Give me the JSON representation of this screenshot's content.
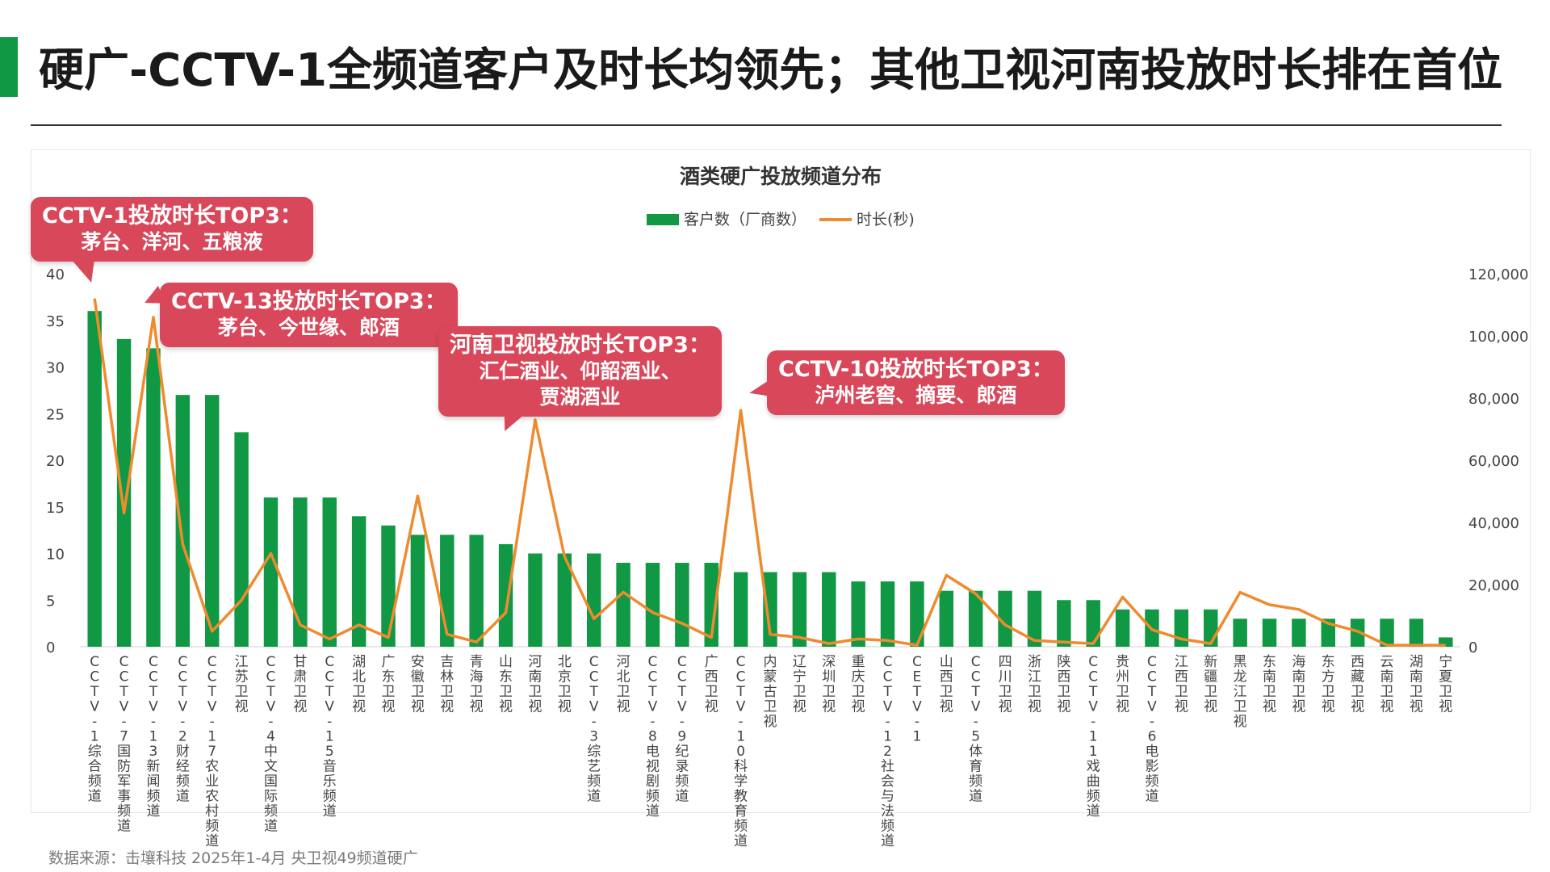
{
  "page": {
    "title": "硬广-CCTV-1全频道客户及时长均领先；其他卫视河南投放时长排在首位",
    "footnote": "数据来源：击壤科技 2025年1-4月 央卫视49频道硬广"
  },
  "colors": {
    "accent": "#119844",
    "bar": "#119844",
    "line": "#ee8b2f",
    "callout": "#d9475a"
  },
  "callouts": [
    {
      "title": "CCTV-1投放时长TOP3：",
      "body": [
        "茅台、洋河、五粮液"
      ]
    },
    {
      "title": "CCTV-13投放时长TOP3：",
      "body": [
        "茅台、今世缘、郎酒"
      ]
    },
    {
      "title": "河南卫视投放时长TOP3：",
      "body": [
        "汇仁酒业、仰韶酒业、",
        "贾湖酒业"
      ]
    },
    {
      "title": "CCTV-10投放时长TOP3：",
      "body": [
        "泸州老窖、摘要、郎酒"
      ]
    }
  ],
  "chart_data": {
    "type": "bar",
    "title": "酒类硬广投放频道分布",
    "legend_position": "top-center",
    "grid": false,
    "categories": [
      "CCTV-1综合频道",
      "CCTV-7国防军事频道",
      "CCTV-13新闻频道",
      "CCTV-2财经频道",
      "CCTV-17农业农村频道",
      "江苏卫视",
      "CCTV-4中文国际频道",
      "甘肃卫视",
      "CCTV-15音乐频道",
      "湖北卫视",
      "广东卫视",
      "安徽卫视",
      "吉林卫视",
      "青海卫视",
      "山东卫视",
      "河南卫视",
      "北京卫视",
      "CCTV-3综艺频道",
      "河北卫视",
      "CCTV-8电视剧频道",
      "CCTV-9纪录频道",
      "广西卫视",
      "CCTV-10科学教育频道",
      "内蒙古卫视",
      "辽宁卫视",
      "深圳卫视",
      "重庆卫视",
      "CCTV-12社会与法频道",
      "CETV-1",
      "山西卫视",
      "CCTV-5体育频道",
      "四川卫视",
      "浙江卫视",
      "陕西卫视",
      "CCTV-11戏曲频道",
      "贵州卫视",
      "CCTV-6电影频道",
      "江西卫视",
      "新疆卫视",
      "黑龙江卫视",
      "东南卫视",
      "海南卫视",
      "东方卫视",
      "西藏卫视",
      "云南卫视",
      "湖南卫视",
      "宁夏卫视"
    ],
    "series": [
      {
        "name": "客户数（厂商数）",
        "kind": "bar",
        "axis": "left",
        "values": [
          36,
          33,
          32,
          27,
          27,
          23,
          16,
          16,
          16,
          14,
          13,
          12,
          12,
          12,
          11,
          10,
          10,
          10,
          9,
          9,
          9,
          9,
          8,
          8,
          8,
          8,
          7,
          7,
          7,
          6,
          6,
          6,
          6,
          5,
          5,
          4,
          4,
          4,
          4,
          3,
          3,
          3,
          3,
          3,
          3,
          3,
          1
        ]
      },
      {
        "name": "时长(秒)",
        "kind": "line",
        "axis": "right",
        "values": [
          112000,
          43000,
          106000,
          33000,
          5000,
          15000,
          30000,
          7000,
          2500,
          7000,
          3000,
          48500,
          4000,
          1500,
          11000,
          73000,
          29000,
          9000,
          17500,
          11000,
          7500,
          3000,
          76000,
          4000,
          3000,
          1000,
          2500,
          2000,
          500,
          23000,
          17000,
          7000,
          2000,
          1500,
          1000,
          16000,
          5500,
          2500,
          1000,
          17500,
          13500,
          12000,
          7500,
          5000,
          500,
          500,
          500
        ]
      }
    ],
    "y_left": {
      "min": 0,
      "max": 40,
      "ticks": [
        "0",
        "5",
        "10",
        "15",
        "20",
        "25",
        "30",
        "35",
        "40"
      ]
    },
    "y_right": {
      "min": 0,
      "max": 120000,
      "ticks": [
        "0",
        "20,000",
        "40,000",
        "60,000",
        "80,000",
        "100,000",
        "120,000"
      ]
    }
  }
}
